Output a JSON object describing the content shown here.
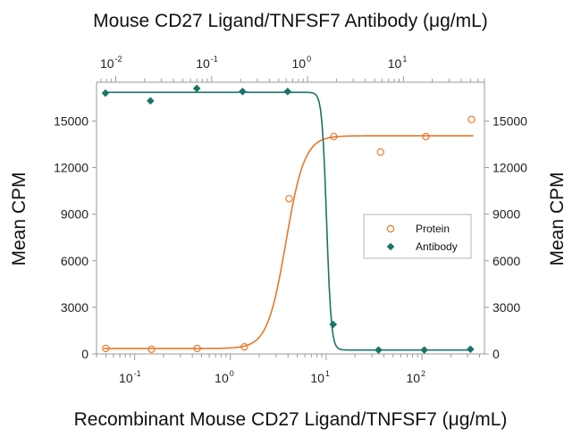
{
  "chart_data": {
    "type": "scatter",
    "title_top": "Mouse CD27 Ligand/TNFSF7 Antibody (μg/mL)",
    "xlabel": "Recombinant Mouse CD27 Ligand/TNFSF7 (μg/mL)",
    "ylabel_left": "Mean CPM",
    "ylabel_right": "Mean CPM",
    "ylim": [
      0,
      17500
    ],
    "yticks": [
      "0",
      "3000",
      "6000",
      "9000",
      "12000",
      "15000"
    ],
    "x_bottom": {
      "scale": "log",
      "range": [
        0.04,
        450
      ],
      "ticks": [
        {
          "base": "10",
          "exp": "-1"
        },
        {
          "base": "10",
          "exp": "0"
        },
        {
          "base": "10",
          "exp": "1"
        },
        {
          "base": "10",
          "exp": "2"
        }
      ]
    },
    "x_top": {
      "scale": "log",
      "range": [
        0.0063,
        70
      ],
      "ticks": [
        {
          "base": "10",
          "exp": "-2"
        },
        {
          "base": "10",
          "exp": "-1"
        },
        {
          "base": "10",
          "exp": "0"
        },
        {
          "base": "10",
          "exp": "1"
        }
      ]
    },
    "legend": {
      "position": "center-right",
      "entries": [
        {
          "label": "Protein",
          "marker": "open-circle",
          "color": "#e8782a"
        },
        {
          "label": "Antibody",
          "marker": "filled-diamond",
          "color": "#1a7368"
        }
      ]
    },
    "series": [
      {
        "name": "Protein",
        "axis": "bottom",
        "color": "#e8782a",
        "marker": "open-circle",
        "x": [
          0.05,
          0.15,
          0.45,
          1.4,
          4.1,
          12,
          37,
          110,
          330
        ],
        "y": [
          350,
          300,
          350,
          450,
          10000,
          14000,
          13000,
          14000,
          15100
        ],
        "fit": {
          "bottom": 350,
          "top": 14050,
          "ec50": 3.8,
          "hill": 4.5
        }
      },
      {
        "name": "Antibody",
        "axis": "top",
        "color": "#1a7368",
        "marker": "filled-diamond",
        "x": [
          0.0078,
          0.023,
          0.07,
          0.21,
          0.62,
          1.85,
          5.5,
          16.5,
          50
        ],
        "y": [
          16800,
          16300,
          17100,
          16900,
          16900,
          1900,
          250,
          250,
          300
        ],
        "fit": {
          "bottom": 250,
          "top": 16850,
          "ec50": 1.58,
          "hill": -18
        }
      }
    ]
  }
}
